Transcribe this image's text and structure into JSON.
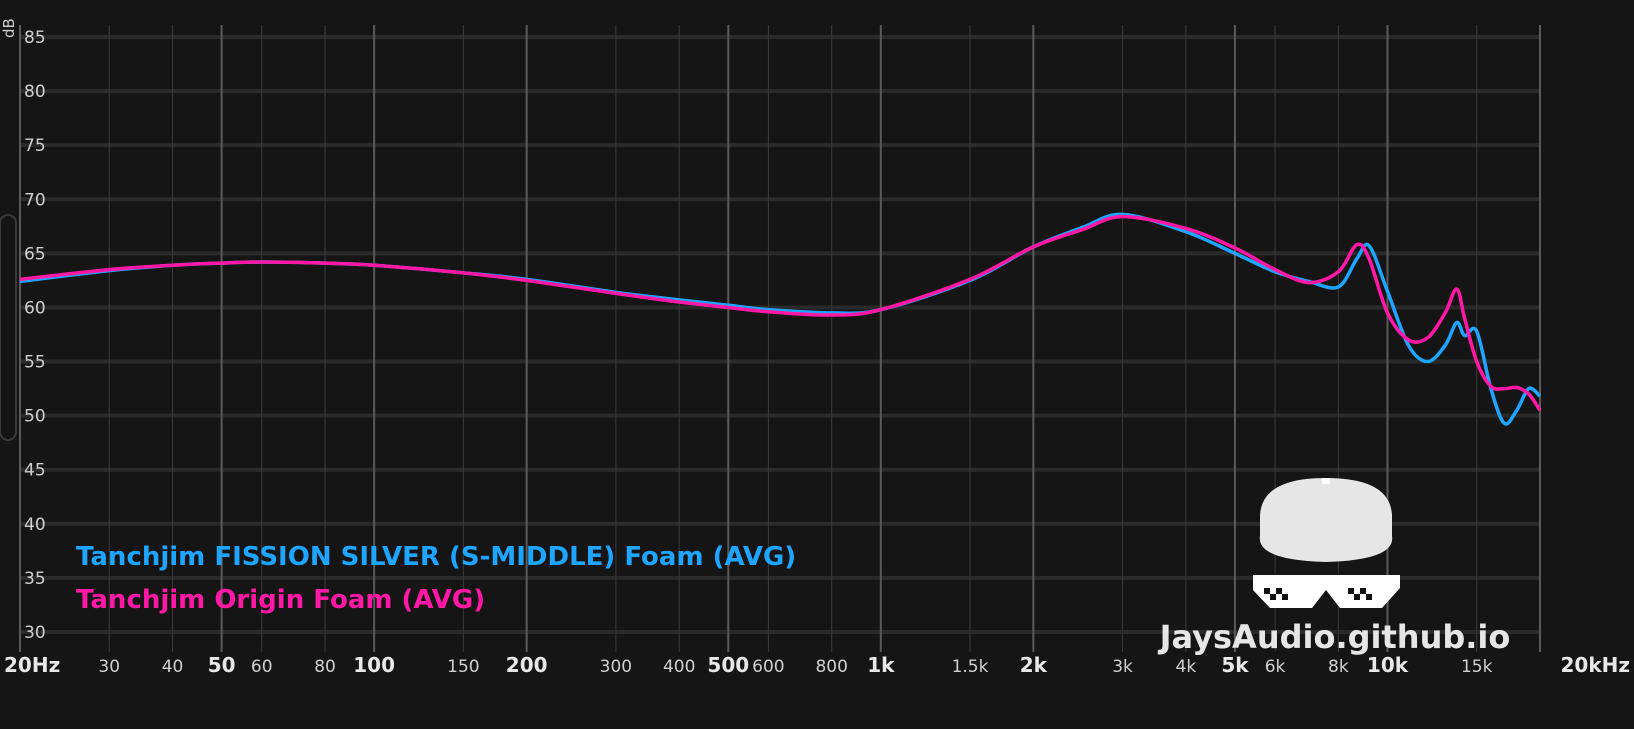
{
  "chart_data": {
    "type": "line",
    "y_label": "dB",
    "watermark": "JaysAudio.github.io",
    "log_x": true,
    "grid": true,
    "legend": "bottom-left",
    "xlim": [
      20,
      20000
    ],
    "ylim": [
      30,
      85
    ],
    "xticks": [
      {
        "value": 20,
        "label": "20Hz"
      },
      30,
      40,
      50,
      60,
      80,
      100,
      150,
      200,
      300,
      400,
      500,
      600,
      800,
      {
        "value": 1000,
        "label": "1k"
      },
      {
        "value": 1500,
        "label": "1.5k"
      },
      {
        "value": 2000,
        "label": "2k"
      },
      {
        "value": 3000,
        "label": "3k"
      },
      {
        "value": 4000,
        "label": "4k"
      },
      {
        "value": 5000,
        "label": "5k"
      },
      {
        "value": 6000,
        "label": "6k"
      },
      {
        "value": 8000,
        "label": "8k"
      },
      {
        "value": 10000,
        "label": "10k"
      },
      {
        "value": 15000,
        "label": "15k"
      },
      {
        "value": 20000,
        "label": "20kHz"
      }
    ],
    "yticks": [
      30,
      35,
      40,
      45,
      50,
      55,
      60,
      65,
      70,
      75,
      80,
      85
    ],
    "x": [
      20,
      30,
      40,
      50,
      60,
      80,
      100,
      150,
      200,
      300,
      400,
      500,
      600,
      800,
      1000,
      1500,
      2000,
      2500,
      3000,
      4000,
      5000,
      6000,
      7000,
      8000,
      8700,
      9200,
      10000,
      11000,
      12000,
      13000,
      13700,
      14200,
      15000,
      16000,
      17000,
      18000,
      19000,
      20000
    ],
    "series": [
      {
        "name": "Tanchjim FISSION SILVER (S-MIDDLE) Foam (AVG)",
        "color": "#1ea5ff",
        "values": [
          62.4,
          63.4,
          63.9,
          64.1,
          64.2,
          64.1,
          63.9,
          63.2,
          62.6,
          61.4,
          60.7,
          60.2,
          59.8,
          59.5,
          59.8,
          62.5,
          65.6,
          67.4,
          68.6,
          67,
          65,
          63.3,
          62.4,
          61.9,
          64.5,
          65.7,
          61.5,
          56.5,
          55,
          56.5,
          58.6,
          57.4,
          57.8,
          52.5,
          49.3,
          50.5,
          52.5,
          51.8
        ]
      },
      {
        "name": "Tanchjim Origin Foam (AVG)",
        "color": "#ff18a6",
        "values": [
          62.6,
          63.5,
          63.9,
          64.1,
          64.2,
          64.1,
          63.9,
          63.2,
          62.5,
          61.3,
          60.5,
          60,
          59.6,
          59.3,
          59.8,
          62.6,
          65.6,
          67.2,
          68.4,
          67.3,
          65.5,
          63.5,
          62.3,
          63.3,
          65.8,
          64.5,
          59.5,
          57,
          57.2,
          59.5,
          61.7,
          59,
          55,
          52.7,
          52.5,
          52.6,
          52,
          50.5
        ]
      }
    ]
  }
}
